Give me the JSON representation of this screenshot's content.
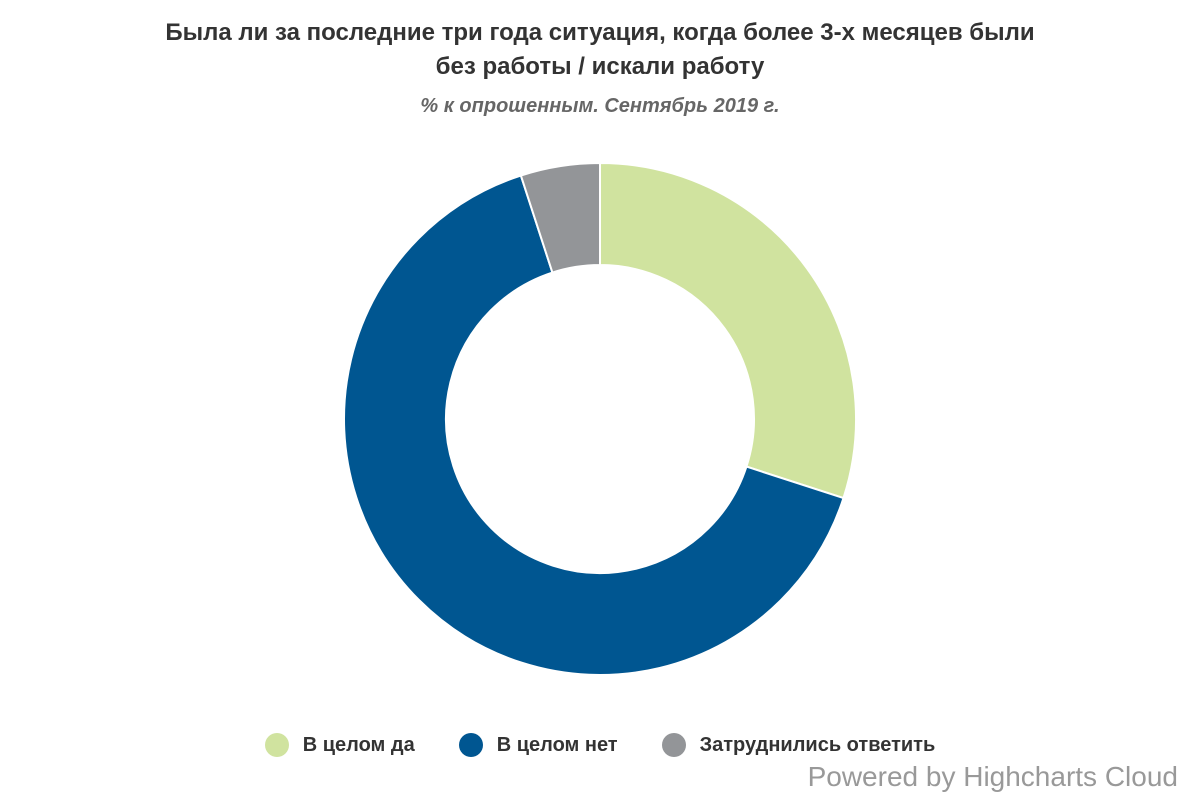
{
  "chart_data": {
    "type": "pie",
    "donut": true,
    "title_lines": [
      "Была ли за последние три года ситуация, когда более 3-х месяцев были",
      "без работы / искали работу"
    ],
    "subtitle": "% к опрошенным. Сентябрь 2019 г.",
    "series": [
      {
        "name": "В целом да",
        "value": 30,
        "color": "#d0e39f"
      },
      {
        "name": "В целом нет",
        "value": 65,
        "color": "#005691"
      },
      {
        "name": "Затруднились ответить",
        "value": 5,
        "color": "#939598"
      }
    ],
    "legend_position": "bottom-center",
    "data_labels": false
  },
  "credits": "Powered by Highcharts Cloud"
}
